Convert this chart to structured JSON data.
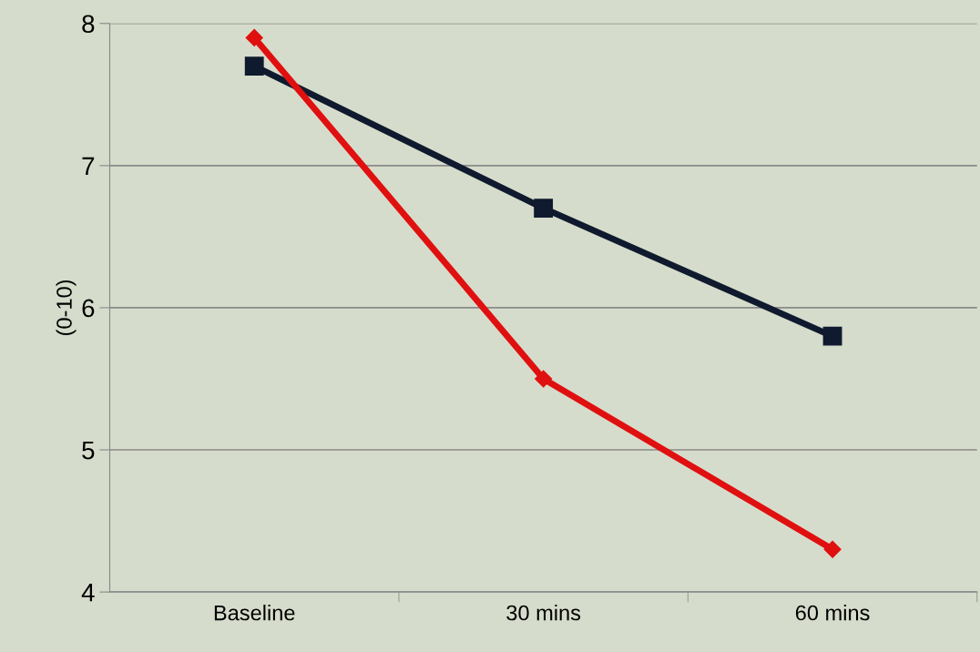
{
  "chart_data": {
    "type": "line",
    "ylabel": "(0-10)",
    "categories": [
      "Baseline",
      "30 mins",
      "60 mins"
    ],
    "series": [
      {
        "color": "#0f1a2e",
        "marker": "square",
        "values": [
          7.7,
          6.7,
          5.8
        ]
      },
      {
        "color": "#e01010",
        "marker": "diamond",
        "values": [
          7.9,
          5.5,
          4.3
        ]
      }
    ],
    "ylim": [
      4,
      8
    ],
    "yticks": [
      4,
      5,
      6,
      7,
      8
    ],
    "grid": "y",
    "legend": false
  }
}
